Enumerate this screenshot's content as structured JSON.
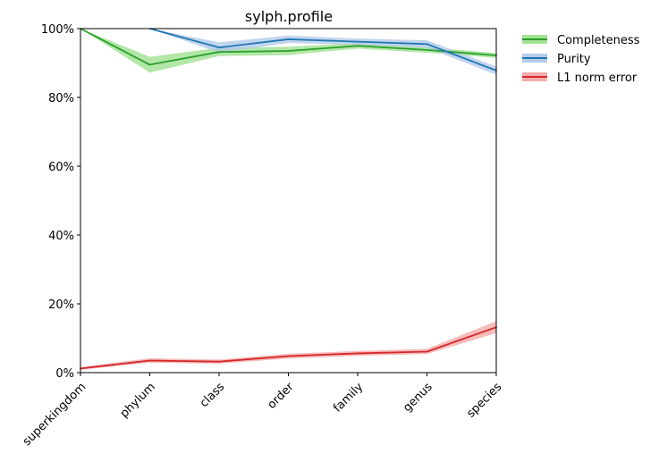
{
  "chart_data": {
    "type": "line",
    "title": "sylph.profile",
    "xlabel": "",
    "ylabel": "",
    "categories": [
      "superkingdom",
      "phylum",
      "class",
      "order",
      "family",
      "genus",
      "species"
    ],
    "ylim": [
      0,
      100
    ],
    "y_ticks": [
      0,
      20,
      40,
      60,
      80,
      100
    ],
    "y_tick_labels": [
      "0%",
      "20%",
      "40%",
      "60%",
      "80%",
      "100%"
    ],
    "grid": false,
    "legend_position": "outside-top-right",
    "series": [
      {
        "name": "Completeness",
        "color": "#2ca02c",
        "band_color": "#98df8a",
        "values": [
          100,
          89.5,
          93.2,
          93.5,
          95.0,
          93.8,
          92.2
        ],
        "lower": [
          100,
          87.2,
          92.0,
          92.3,
          94.2,
          93.0,
          91.5
        ],
        "upper": [
          100,
          91.8,
          94.4,
          94.7,
          95.8,
          94.6,
          92.9
        ]
      },
      {
        "name": "Purity",
        "color": "#1f77b4",
        "band_color": "#aec7e8",
        "values": [
          null,
          100,
          94.5,
          96.9,
          96.2,
          95.5,
          87.8
        ],
        "lower": [
          null,
          100,
          93.0,
          95.8,
          95.3,
          94.4,
          86.6
        ],
        "upper": [
          null,
          100,
          96.0,
          98.0,
          97.1,
          96.6,
          89.0
        ]
      },
      {
        "name": "L1 norm error",
        "color": "#d62728",
        "band_color": "#f2a5a5",
        "values": [
          1.2,
          3.5,
          3.2,
          4.8,
          5.6,
          6.1,
          13.2
        ],
        "lower": [
          0.8,
          2.9,
          2.6,
          4.1,
          4.9,
          5.4,
          11.5
        ],
        "upper": [
          1.6,
          4.2,
          3.8,
          5.5,
          6.3,
          6.9,
          15.0
        ]
      }
    ]
  }
}
